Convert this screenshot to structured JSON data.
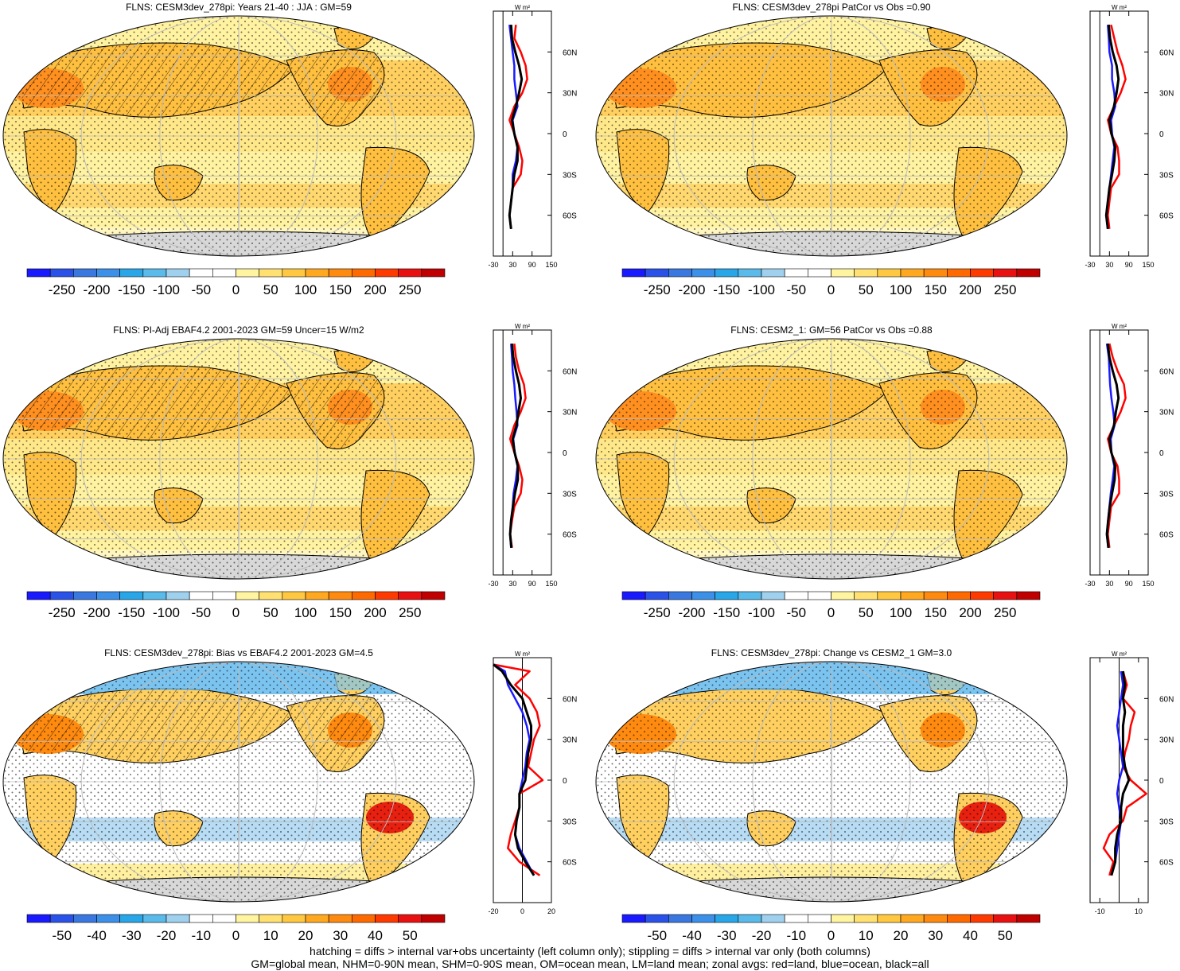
{
  "colors": {
    "full_scale": [
      "#1a1aff",
      "#2a52e8",
      "#3a78e0",
      "#3c90e8",
      "#28a6e8",
      "#5abaea",
      "#9fd0ee",
      "#ffffff",
      "#ffffff",
      "#fff4a0",
      "#ffe070",
      "#ffc840",
      "#ffa820",
      "#ff8a10",
      "#ff6a00",
      "#ff3a00",
      "#e81010",
      "#c00000"
    ],
    "land": "red",
    "ocean": "blue",
    "all": "black",
    "missing": "#c8c8c8"
  },
  "panels": [
    {
      "id": "p1",
      "title": "FLNS: CESM3dev_278pi: Years 21-40 : JJA : GM=59",
      "field": "mean",
      "cbar_labels": [
        "-250",
        "-200",
        "-150",
        "-100",
        "-50",
        "0",
        "50",
        "100",
        "150",
        "200",
        "250"
      ],
      "chart_data": {
        "type": "line",
        "title": "",
        "unit_label": "W m²",
        "xlim": [
          -30,
          150
        ],
        "xticks": [
          "-30",
          "30",
          "90",
          "150"
        ],
        "ylim": [
          -90,
          90
        ],
        "yticks": [
          "60N",
          "30N",
          "0",
          "30S",
          "60S"
        ],
        "series": [
          {
            "name": "red",
            "lat": [
              80,
              70,
              60,
              50,
              40,
              30,
              20,
              10,
              0,
              -10,
              -20,
              -30,
              -40,
              -50,
              -60,
              -70
            ],
            "values": [
              40,
              35,
              55,
              70,
              75,
              60,
              35,
              20,
              35,
              50,
              60,
              55,
              30,
              25,
              20,
              25
            ]
          },
          {
            "name": "blue",
            "lat": [
              80,
              70,
              60,
              50,
              40,
              30,
              20,
              10,
              0,
              -10,
              -20,
              -30,
              -40,
              -50,
              -60,
              -70
            ],
            "values": [
              20,
              25,
              30,
              35,
              35,
              40,
              45,
              30,
              35,
              45,
              40,
              30,
              30,
              25,
              20,
              25
            ]
          },
          {
            "name": "black",
            "lat": [
              80,
              70,
              60,
              50,
              40,
              30,
              20,
              10,
              0,
              -10,
              -20,
              -30,
              -40,
              -50,
              -60,
              -70
            ],
            "values": [
              25,
              28,
              38,
              50,
              58,
              50,
              40,
              28,
              35,
              45,
              45,
              35,
              30,
              25,
              20,
              25
            ]
          }
        ]
      }
    },
    {
      "id": "p2",
      "title": "FLNS: CESM3dev_278pi PatCor vs Obs =0.90",
      "field": "mean",
      "cbar_labels": [
        "-250",
        "-200",
        "-150",
        "-100",
        "-50",
        "0",
        "50",
        "100",
        "150",
        "200",
        "250"
      ],
      "chart_data": {
        "type": "line",
        "title": "",
        "unit_label": "W m²",
        "xlim": [
          -30,
          150
        ],
        "xticks": [
          "-30",
          "30",
          "90",
          "150"
        ],
        "ylim": [
          -90,
          90
        ],
        "yticks": [
          "60N",
          "30N",
          "0",
          "30S",
          "60S"
        ],
        "series": [
          {
            "name": "red",
            "lat": [
              80,
              70,
              60,
              50,
              40,
              30,
              20,
              10,
              0,
              -10,
              -20,
              -30,
              -40,
              -50,
              -60,
              -70
            ],
            "values": [
              35,
              45,
              55,
              70,
              80,
              65,
              45,
              25,
              35,
              55,
              60,
              60,
              35,
              30,
              25,
              30
            ]
          },
          {
            "name": "blue",
            "lat": [
              80,
              70,
              60,
              50,
              40,
              30,
              20,
              10,
              0,
              -10,
              -20,
              -30,
              -40,
              -50,
              -60,
              -70
            ],
            "values": [
              25,
              28,
              30,
              38,
              38,
              45,
              48,
              35,
              38,
              45,
              40,
              35,
              30,
              25,
              20,
              25
            ]
          },
          {
            "name": "black",
            "lat": [
              80,
              70,
              60,
              50,
              40,
              30,
              20,
              10,
              0,
              -10,
              -20,
              -30,
              -40,
              -50,
              -60,
              -70
            ],
            "values": [
              28,
              32,
              40,
              52,
              58,
              52,
              44,
              30,
              36,
              48,
              45,
              38,
              30,
              25,
              20,
              25
            ]
          }
        ]
      }
    },
    {
      "id": "p3",
      "title": "FLNS: PI-Adj EBAF4.2 2001-2023 GM=59 Uncer=15 W/m2",
      "field": "mean",
      "cbar_labels": [
        "-250",
        "-200",
        "-150",
        "-100",
        "-50",
        "0",
        "50",
        "100",
        "150",
        "200",
        "250"
      ],
      "chart_data": {
        "type": "line",
        "title": "",
        "unit_label": "W m²",
        "xlim": [
          -30,
          150
        ],
        "xticks": [
          "-30",
          "30",
          "90",
          "150"
        ],
        "ylim": [
          -90,
          90
        ],
        "yticks": [
          "60N",
          "30N",
          "0",
          "30S",
          "60S"
        ],
        "series": [
          {
            "name": "red",
            "lat": [
              80,
              70,
              60,
              50,
              40,
              30,
              20,
              10,
              0,
              -10,
              -20,
              -30,
              -40,
              -50,
              -60,
              -70
            ],
            "values": [
              35,
              40,
              50,
              65,
              70,
              55,
              35,
              22,
              35,
              50,
              60,
              55,
              35,
              28,
              22,
              28
            ]
          },
          {
            "name": "blue",
            "lat": [
              80,
              70,
              60,
              50,
              40,
              30,
              20,
              10,
              0,
              -10,
              -20,
              -30,
              -40,
              -50,
              -60,
              -70
            ],
            "values": [
              25,
              28,
              30,
              35,
              38,
              42,
              45,
              32,
              36,
              45,
              40,
              33,
              30,
              25,
              22,
              25
            ]
          },
          {
            "name": "black",
            "lat": [
              80,
              70,
              60,
              50,
              40,
              30,
              20,
              10,
              0,
              -10,
              -20,
              -30,
              -40,
              -50,
              -60,
              -70
            ],
            "values": [
              28,
              32,
              40,
              50,
              55,
              48,
              42,
              30,
              36,
              46,
              46,
              37,
              31,
              25,
              22,
              26
            ]
          }
        ]
      }
    },
    {
      "id": "p4",
      "title": "FLNS: CESM2_1: GM=56 PatCor vs Obs =0.88",
      "field": "mean",
      "cbar_labels": [
        "-250",
        "-200",
        "-150",
        "-100",
        "-50",
        "0",
        "50",
        "100",
        "150",
        "200",
        "250"
      ],
      "chart_data": {
        "type": "line",
        "title": "",
        "unit_label": "W m²",
        "xlim": [
          -30,
          150
        ],
        "xticks": [
          "-30",
          "30",
          "90",
          "150"
        ],
        "ylim": [
          -90,
          90
        ],
        "yticks": [
          "60N",
          "30N",
          "0",
          "30S",
          "60S"
        ],
        "series": [
          {
            "name": "red",
            "lat": [
              80,
              70,
              60,
              50,
              40,
              30,
              20,
              10,
              0,
              -10,
              -20,
              -30,
              -40,
              -50,
              -60,
              -70
            ],
            "values": [
              30,
              40,
              55,
              75,
              80,
              65,
              45,
              25,
              35,
              55,
              60,
              60,
              35,
              30,
              25,
              30
            ]
          },
          {
            "name": "blue",
            "lat": [
              80,
              70,
              60,
              50,
              40,
              30,
              20,
              10,
              0,
              -10,
              -20,
              -30,
              -40,
              -50,
              -60,
              -70
            ],
            "values": [
              22,
              28,
              30,
              32,
              36,
              42,
              46,
              34,
              36,
              45,
              40,
              34,
              30,
              26,
              22,
              26
            ]
          },
          {
            "name": "black",
            "lat": [
              80,
              70,
              60,
              50,
              40,
              30,
              20,
              10,
              0,
              -10,
              -20,
              -30,
              -40,
              -50,
              -60,
              -70
            ],
            "values": [
              25,
              30,
              40,
              52,
              58,
              50,
              44,
              30,
              36,
              48,
              46,
              38,
              31,
              26,
              22,
              27
            ]
          }
        ]
      }
    },
    {
      "id": "p5",
      "title": "FLNS: CESM3dev_278pi: Bias vs EBAF4.2 2001-2023 GM=4.5",
      "field": "diff",
      "cbar_labels": [
        "-50",
        "-40",
        "-30",
        "-20",
        "-10",
        "0",
        "10",
        "20",
        "30",
        "40",
        "50"
      ],
      "chart_data": {
        "type": "line",
        "title": "",
        "unit_label": "W m²",
        "xlim": [
          -20,
          20
        ],
        "xticks": [
          "-20",
          "0",
          "20"
        ],
        "ylim": [
          -90,
          90
        ],
        "yticks": [
          "60N",
          "30N",
          "0",
          "30S",
          "60S"
        ],
        "series": [
          {
            "name": "red",
            "lat": [
              85,
              80,
              70,
              60,
              50,
              40,
              30,
              20,
              10,
              0,
              -10,
              -20,
              -30,
              -40,
              -50,
              -60,
              -70
            ],
            "values": [
              -20,
              5,
              -5,
              5,
              10,
              12,
              8,
              6,
              4,
              14,
              -2,
              -2,
              -5,
              -8,
              -10,
              -2,
              12
            ]
          },
          {
            "name": "blue",
            "lat": [
              85,
              80,
              70,
              60,
              50,
              40,
              30,
              20,
              10,
              0,
              -10,
              -20,
              -30,
              -40,
              -50,
              -60,
              -70
            ],
            "values": [
              -20,
              -12,
              -10,
              -5,
              0,
              3,
              5,
              3,
              2,
              0,
              -2,
              -2,
              -4,
              -5,
              -2,
              3,
              8
            ]
          },
          {
            "name": "black",
            "lat": [
              85,
              80,
              70,
              60,
              50,
              40,
              30,
              20,
              10,
              0,
              -10,
              -20,
              -30,
              -40,
              -50,
              -60,
              -70
            ],
            "values": [
              -20,
              -14,
              -8,
              0,
              3,
              6,
              6,
              4,
              3,
              2,
              -2,
              -2,
              -4,
              -5,
              -3,
              2,
              8
            ]
          }
        ]
      }
    },
    {
      "id": "p6",
      "title": "FLNS: CESM3dev_278pi: Change vs CESM2_1 GM=3.0",
      "field": "diff",
      "cbar_labels": [
        "-50",
        "-40",
        "-30",
        "-20",
        "-10",
        "0",
        "10",
        "20",
        "30",
        "40",
        "50"
      ],
      "chart_data": {
        "type": "line",
        "title": "",
        "unit_label": "W m²",
        "xlim": [
          -15,
          15
        ],
        "xticks": [
          "-10",
          "10"
        ],
        "ylim": [
          -90,
          90
        ],
        "yticks": [
          "60N",
          "30N",
          "0",
          "30S",
          "60S"
        ],
        "series": [
          {
            "name": "red",
            "lat": [
              80,
              70,
              60,
              50,
              40,
              30,
              20,
              10,
              0,
              -10,
              -20,
              -30,
              -40,
              -50,
              -60,
              -70
            ],
            "values": [
              2,
              4,
              2,
              8,
              6,
              5,
              3,
              2,
              6,
              14,
              4,
              2,
              -5,
              -8,
              -3,
              -5
            ]
          },
          {
            "name": "blue",
            "lat": [
              80,
              70,
              60,
              50,
              40,
              30,
              20,
              10,
              0,
              -10,
              -20,
              -30,
              -40,
              -50,
              -60,
              -70
            ],
            "values": [
              1,
              2,
              1,
              0,
              -1,
              0,
              1,
              2,
              0,
              -1,
              0,
              1,
              0,
              -1,
              -2,
              -4
            ]
          },
          {
            "name": "black",
            "lat": [
              80,
              70,
              60,
              50,
              40,
              30,
              20,
              10,
              0,
              -10,
              -20,
              -30,
              -40,
              -50,
              -60,
              -70
            ],
            "values": [
              2,
              3,
              2,
              3,
              2,
              2,
              2,
              3,
              5,
              2,
              1,
              1,
              -1,
              -2,
              -2,
              -4
            ]
          }
        ]
      }
    }
  ],
  "footnote": {
    "line1": "hatching = diffs > internal var+obs uncertainty (left column only); stippling = diffs > internal var only (both columns)",
    "line2": "GM=global mean, NHM=0-90N mean, SHM=0-90S mean, OM=ocean mean, LM=land mean; zonal avgs: red=land, blue=ocean, black=all"
  }
}
